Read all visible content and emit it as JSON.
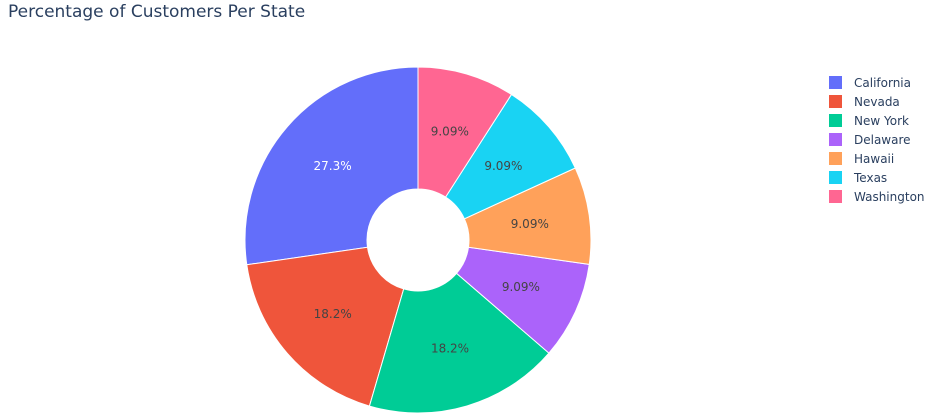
{
  "chart_data": {
    "type": "pie",
    "title": "Percentage of Customers Per State",
    "hole": true,
    "legend_placement": "right",
    "categories": [
      "California",
      "Nevada",
      "New York",
      "Delaware",
      "Hawaii",
      "Texas",
      "Washington"
    ],
    "values": [
      27.3,
      18.2,
      18.2,
      9.09,
      9.09,
      9.09,
      9.09
    ],
    "labels": [
      "27.3%",
      "18.2%",
      "18.2%",
      "9.09%",
      "9.09%",
      "9.09%",
      "9.09%"
    ],
    "colors": [
      "#636efa",
      "#ef553b",
      "#00cc96",
      "#ab63fa",
      "#ffa15a",
      "#19d3f3",
      "#ff6692"
    ],
    "legend_order": [
      "California",
      "Nevada",
      "New York",
      "Delaware",
      "Hawaii",
      "Texas",
      "Washington"
    ],
    "slice_order": [
      "California",
      "Nevada",
      "New York",
      "Delaware",
      "Hawaii",
      "Texas",
      "Washington"
    ]
  }
}
